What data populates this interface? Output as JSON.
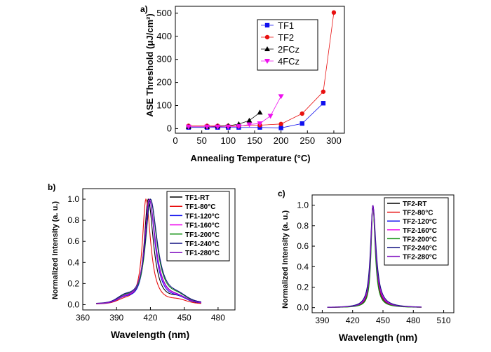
{
  "chart_data": [
    {
      "type": "line",
      "panel_label": "a)",
      "title": "",
      "xlabel": "Annealing Temperature (°C)",
      "ylabel": "ASE Threshold (μJ/cm²)",
      "xlim": [
        0,
        320
      ],
      "ylim": [
        -20,
        530
      ],
      "xticks": [
        0,
        50,
        100,
        150,
        200,
        250,
        300
      ],
      "yticks": [
        0,
        100,
        200,
        300,
        400,
        500
      ],
      "legend_position": "top-right",
      "series": [
        {
          "name": "TF1",
          "color": "#1010ee",
          "marker": "square",
          "x": [
            25,
            60,
            80,
            100,
            120,
            160,
            200,
            240,
            280
          ],
          "y": [
            5,
            5,
            5,
            5,
            5,
            5,
            3,
            22,
            110
          ]
        },
        {
          "name": "TF2",
          "color": "#e81010",
          "marker": "circle",
          "x": [
            25,
            60,
            80,
            100,
            120,
            160,
            200,
            240,
            280,
            300
          ],
          "y": [
            12,
            12,
            12,
            12,
            12,
            15,
            20,
            65,
            160,
            503
          ]
        },
        {
          "name": "2FCz",
          "color": "#000000",
          "marker": "triangle-up",
          "x": [
            25,
            60,
            80,
            100,
            120,
            140,
            160
          ],
          "y": [
            8,
            8,
            10,
            12,
            20,
            35,
            70
          ]
        },
        {
          "name": "4FCz",
          "color": "#ee10ee",
          "marker": "triangle-down",
          "x": [
            25,
            60,
            80,
            100,
            120,
            140,
            160,
            180,
            200
          ],
          "y": [
            8,
            8,
            8,
            8,
            10,
            18,
            22,
            55,
            140
          ]
        }
      ]
    },
    {
      "type": "line",
      "panel_label": "b)",
      "title": "",
      "xlabel": "Wavelength (nm)",
      "ylabel": "Normalized Intensity (a. u.)",
      "xlim": [
        360,
        495
      ],
      "ylim": [
        -0.05,
        1.1
      ],
      "xticks": [
        360,
        390,
        420,
        450,
        480
      ],
      "yticks": [
        0.0,
        0.2,
        0.4,
        0.6,
        0.8,
        1.0
      ],
      "legend_position": "top-right",
      "series": [
        {
          "name": "TF1-RT",
          "color": "#000000",
          "peak": 418,
          "width": 4.2,
          "shoulder": 0.05
        },
        {
          "name": "TF1-80°C",
          "color": "#e81010",
          "peak": 416,
          "width": 3.8,
          "shoulder": 0.03
        },
        {
          "name": "TF1-120°C",
          "color": "#1010ee",
          "peak": 419,
          "width": 4.5,
          "shoulder": 0.04
        },
        {
          "name": "TF1-160°C",
          "color": "#ee10ee",
          "peak": 419,
          "width": 4.8,
          "shoulder": 0.04
        },
        {
          "name": "TF1-200°C",
          "color": "#109010",
          "peak": 420,
          "width": 5.2,
          "shoulder": 0.05
        },
        {
          "name": "TF1-240°C",
          "color": "#101080",
          "peak": 420,
          "width": 5.5,
          "shoulder": 0.05
        },
        {
          "name": "TF1-280°C",
          "color": "#8010c0",
          "peak": 419,
          "width": 5.0,
          "shoulder": 0.04
        }
      ]
    },
    {
      "type": "line",
      "panel_label": "c)",
      "title": "",
      "xlabel": "Wavelength (nm)",
      "ylabel": "Normalized Intensity (a. u.)",
      "xlim": [
        380,
        520
      ],
      "ylim": [
        -0.05,
        1.1
      ],
      "xticks": [
        390,
        420,
        450,
        480,
        510
      ],
      "yticks": [
        0.0,
        0.2,
        0.4,
        0.6,
        0.8,
        1.0
      ],
      "legend_position": "top-right",
      "series": [
        {
          "name": "TF2-RT",
          "color": "#000000",
          "peak": 440,
          "width": 2.2
        },
        {
          "name": "TF2-80°C",
          "color": "#e81010",
          "peak": 440,
          "width": 2.3
        },
        {
          "name": "TF2-120°C",
          "color": "#1010ee",
          "peak": 440,
          "width": 2.5
        },
        {
          "name": "TF2-160°C",
          "color": "#ee10ee",
          "peak": 440,
          "width": 2.6
        },
        {
          "name": "TF2-200°C",
          "color": "#109010",
          "peak": 440,
          "width": 2.0
        },
        {
          "name": "TF2-240°C",
          "color": "#101080",
          "peak": 440,
          "width": 2.8
        },
        {
          "name": "TF2-280°C",
          "color": "#8010c0",
          "peak": 440,
          "width": 2.4
        }
      ]
    }
  ]
}
